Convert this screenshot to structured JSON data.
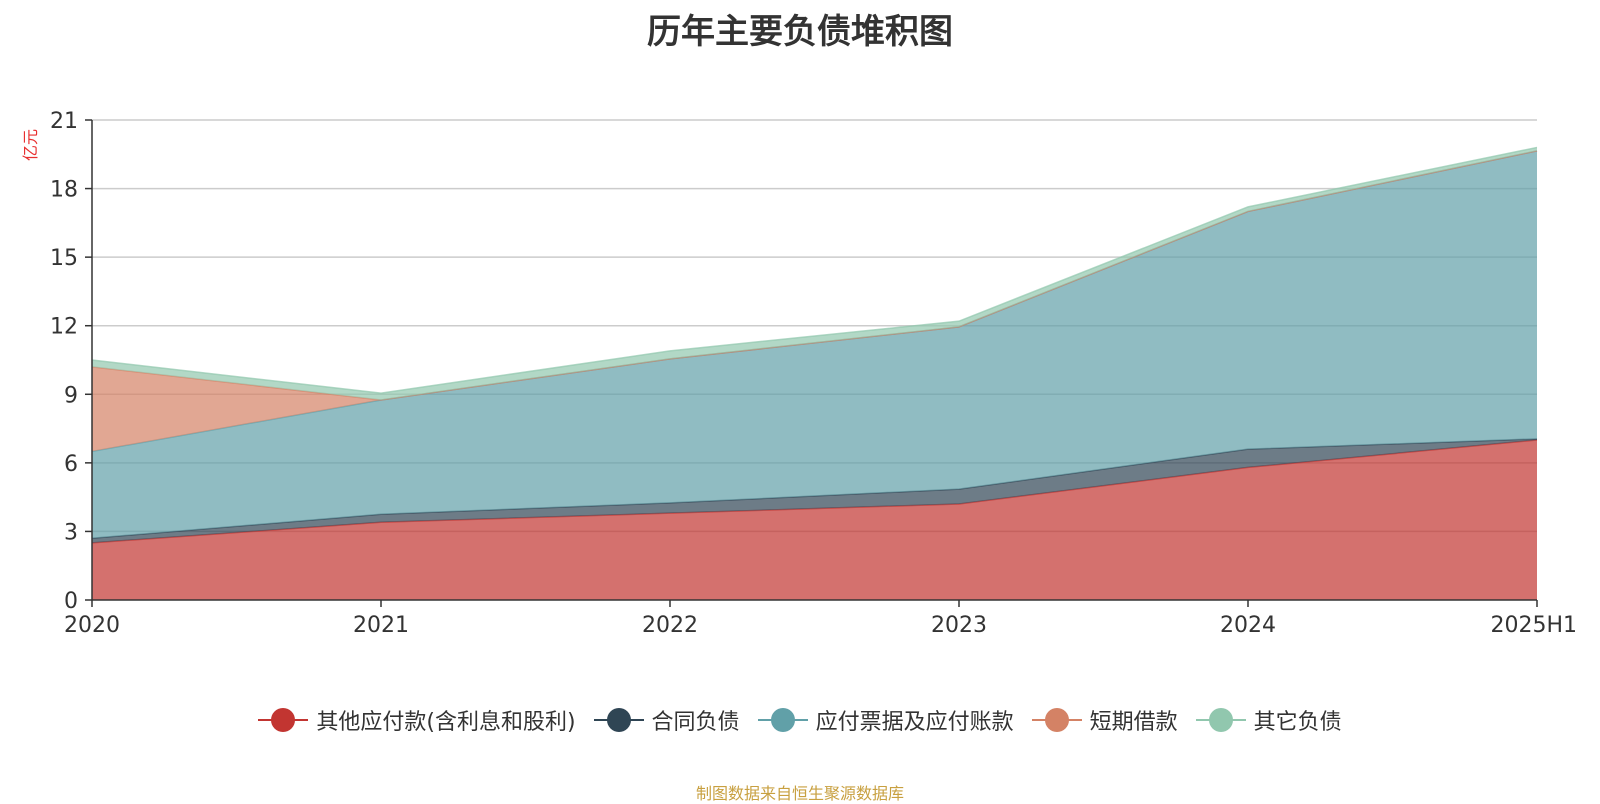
{
  "chart_data": {
    "type": "area",
    "stacked": true,
    "title": "历年主要负债堆积图",
    "ylabel": "亿元",
    "categories": [
      "2020",
      "2021",
      "2022",
      "2023",
      "2024",
      "2025H1"
    ],
    "ylim": [
      0,
      21
    ],
    "yticks": [
      0,
      3,
      6,
      9,
      12,
      15,
      18,
      21
    ],
    "grid": true,
    "legend_position": "bottom",
    "series": [
      {
        "name": "其他应付款(含利息和股利)",
        "color": "#c23531",
        "values": [
          2.5,
          3.4,
          3.8,
          4.2,
          5.8,
          7.0
        ]
      },
      {
        "name": "合同负债",
        "color": "#2f4554",
        "values": [
          0.2,
          0.35,
          0.45,
          0.65,
          0.8,
          0.05
        ]
      },
      {
        "name": "应付票据及应付账款",
        "color": "#61a0a8",
        "values": [
          3.8,
          5.0,
          6.3,
          7.1,
          10.4,
          12.6
        ]
      },
      {
        "name": "短期借款",
        "color": "#d48265",
        "values": [
          3.7,
          0.0,
          0.0,
          0.0,
          0.0,
          0.0
        ]
      },
      {
        "name": "其它负债",
        "color": "#91c7ae",
        "values": [
          0.3,
          0.3,
          0.35,
          0.25,
          0.2,
          0.15
        ]
      }
    ]
  },
  "source_note": "制图数据来自恒生聚源数据库"
}
